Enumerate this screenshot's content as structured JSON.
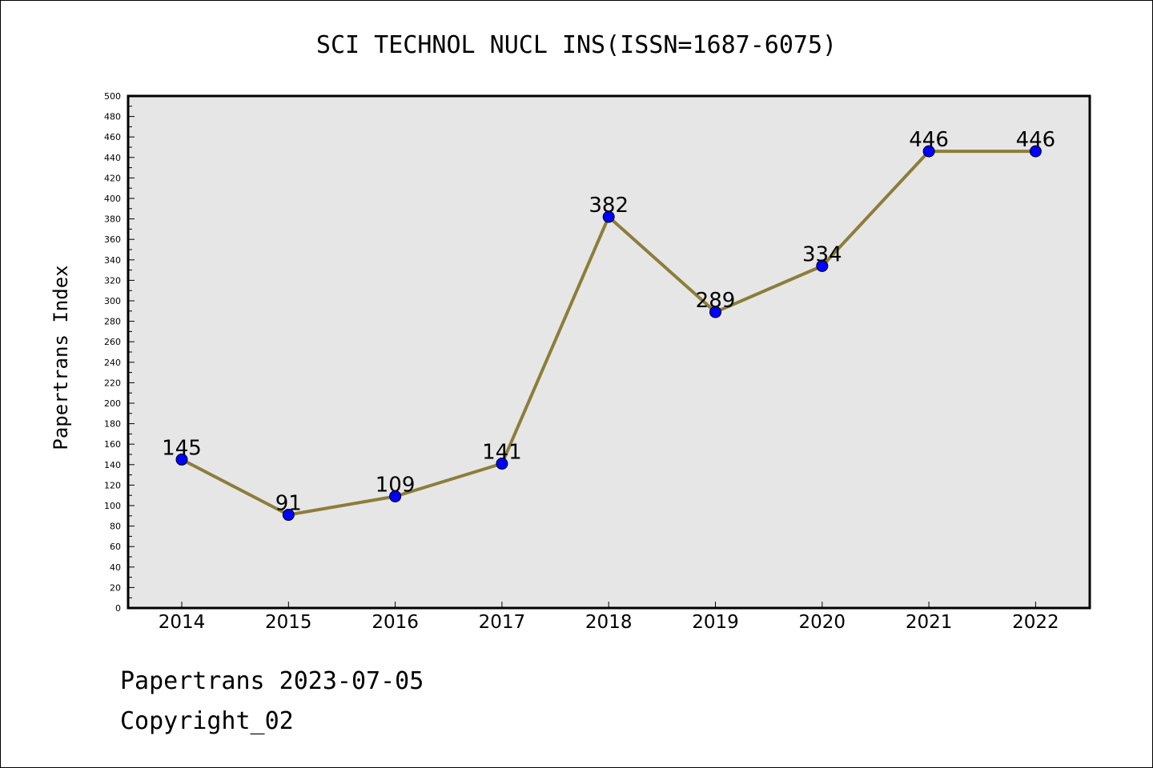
{
  "chart_data": {
    "type": "line",
    "title": "SCI TECHNOL NUCL INS(ISSN=1687-6075)",
    "ylabel": "Papertrans Index",
    "xlabel": "",
    "x": [
      "2014",
      "2015",
      "2016",
      "2017",
      "2018",
      "2019",
      "2020",
      "2021",
      "2022"
    ],
    "series": [
      {
        "values": [
          145,
          91,
          109,
          141,
          382,
          289,
          334,
          446,
          446
        ]
      }
    ],
    "ylim": [
      0,
      500
    ],
    "ytick_step": 20,
    "grid": false,
    "data_labels": true,
    "colors": {
      "line": "#8c7d3a",
      "marker": "#0000ff",
      "plot_bg": "#e6e6e6"
    }
  },
  "footer": {
    "line1": "Papertrans 2023-07-05",
    "line2": "Copyright_02"
  }
}
